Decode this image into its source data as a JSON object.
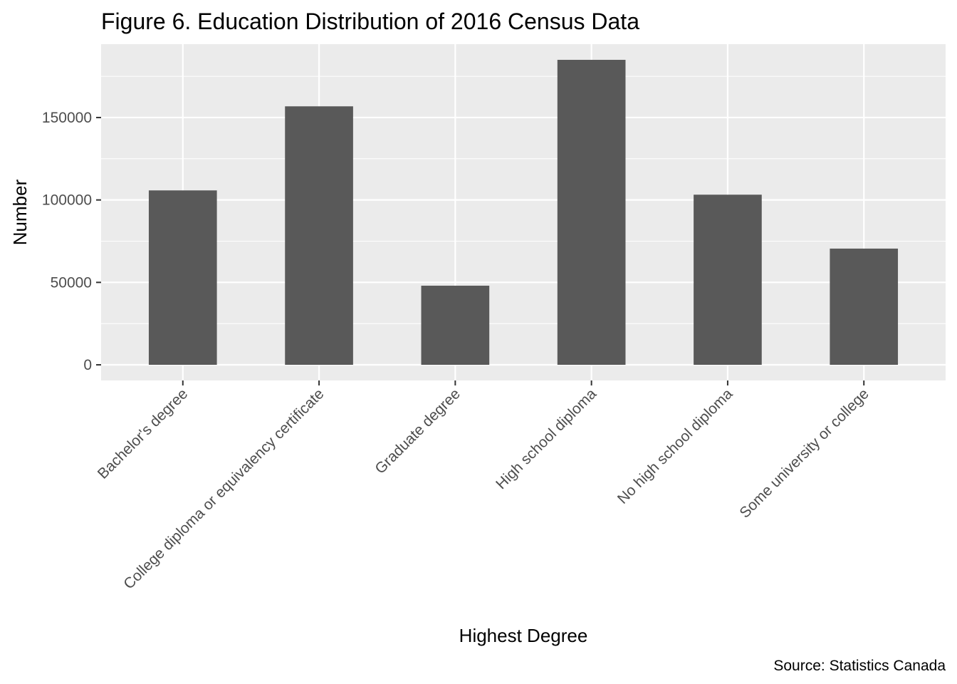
{
  "chart_data": {
    "type": "bar",
    "title": "Figure 6. Education Distribution of 2016 Census Data",
    "xlabel": "Highest Degree",
    "ylabel": "Number",
    "caption": "Source: Statistics Canada",
    "categories": [
      "Bachelor's degree",
      "College diploma or equivalency certificate",
      "Graduate degree",
      "High school diploma",
      "No high school diploma",
      "Some university or college"
    ],
    "values": [
      105800,
      156800,
      48000,
      185000,
      103200,
      70500
    ],
    "ylim": [
      -9500,
      194500
    ],
    "yticks": [
      0,
      50000,
      100000,
      150000
    ],
    "ytick_labels": [
      "0",
      "50000",
      "100000",
      "150000"
    ],
    "grid": true,
    "legend": "none",
    "colors": {
      "bar": "#595959",
      "panel": "#ebebeb",
      "grid": "#ffffff",
      "tick": "#333333"
    }
  }
}
